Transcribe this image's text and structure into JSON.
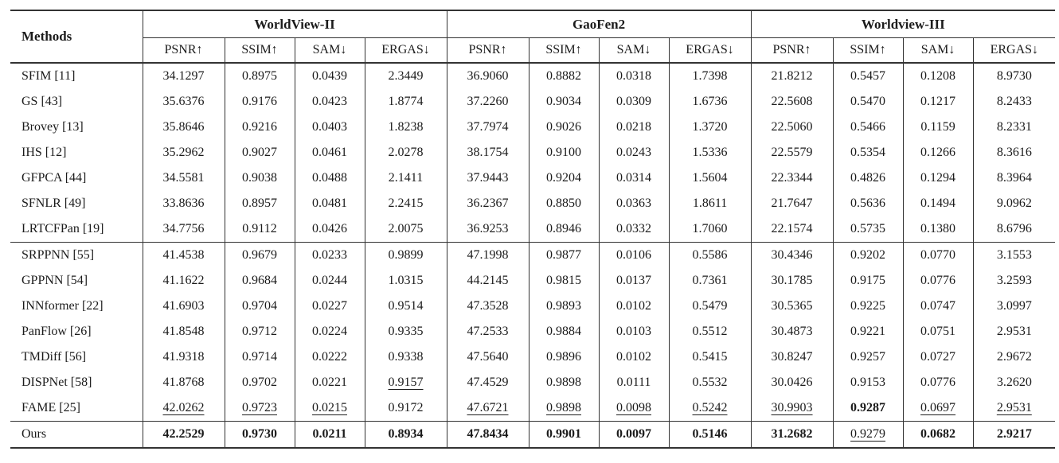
{
  "colors": {
    "text": "#1b1b1b",
    "rule": "#333333"
  },
  "table": {
    "methods_header": "Methods",
    "groups": [
      {
        "label": "WorldView-II",
        "metrics": [
          "PSNR↑",
          "SSIM↑",
          "SAM↓",
          "ERGAS↓"
        ]
      },
      {
        "label": "GaoFen2",
        "metrics": [
          "PSNR↑",
          "SSIM↑",
          "SAM↓",
          "ERGAS↓"
        ]
      },
      {
        "label": "Worldview-III",
        "metrics": [
          "PSNR↑",
          "SSIM↑",
          "SAM↓",
          "ERGAS↓"
        ]
      }
    ],
    "rows": [
      {
        "method": "SFIM [11]",
        "group": "classical",
        "values": [
          "34.1297",
          "0.8975",
          "0.0439",
          "2.3449",
          "36.9060",
          "0.8882",
          "0.0318",
          "1.7398",
          "21.8212",
          "0.5457",
          "0.1208",
          "8.9730"
        ]
      },
      {
        "method": "GS [43]",
        "group": "classical",
        "values": [
          "35.6376",
          "0.9176",
          "0.0423",
          "1.8774",
          "37.2260",
          "0.9034",
          "0.0309",
          "1.6736",
          "22.5608",
          "0.5470",
          "0.1217",
          "8.2433"
        ]
      },
      {
        "method": "Brovey [13]",
        "group": "classical",
        "values": [
          "35.8646",
          "0.9216",
          "0.0403",
          "1.8238",
          "37.7974",
          "0.9026",
          "0.0218",
          "1.3720",
          "22.5060",
          "0.5466",
          "0.1159",
          "8.2331"
        ]
      },
      {
        "method": "IHS [12]",
        "group": "classical",
        "values": [
          "35.2962",
          "0.9027",
          "0.0461",
          "2.0278",
          "38.1754",
          "0.9100",
          "0.0243",
          "1.5336",
          "22.5579",
          "0.5354",
          "0.1266",
          "8.3616"
        ]
      },
      {
        "method": "GFPCA [44]",
        "group": "classical",
        "values": [
          "34.5581",
          "0.9038",
          "0.0488",
          "2.1411",
          "37.9443",
          "0.9204",
          "0.0314",
          "1.5604",
          "22.3344",
          "0.4826",
          "0.1294",
          "8.3964"
        ]
      },
      {
        "method": "SFNLR [49]",
        "group": "classical",
        "values": [
          "33.8636",
          "0.8957",
          "0.0481",
          "2.2415",
          "36.2367",
          "0.8850",
          "0.0363",
          "1.8611",
          "21.7647",
          "0.5636",
          "0.1494",
          "9.0962"
        ]
      },
      {
        "method": "LRTCFPan [19]",
        "group": "classical",
        "values": [
          "34.7756",
          "0.9112",
          "0.0426",
          "2.0075",
          "36.9253",
          "0.8946",
          "0.0332",
          "1.7060",
          "22.1574",
          "0.5735",
          "0.1380",
          "8.6796"
        ]
      },
      {
        "method": "SRPPNN [55]",
        "group": "deep",
        "values": [
          "41.4538",
          "0.9679",
          "0.0233",
          "0.9899",
          "47.1998",
          "0.9877",
          "0.0106",
          "0.5586",
          "30.4346",
          "0.9202",
          "0.0770",
          "3.1553"
        ]
      },
      {
        "method": "GPPNN [54]",
        "group": "deep",
        "values": [
          "41.1622",
          "0.9684",
          "0.0244",
          "1.0315",
          "44.2145",
          "0.9815",
          "0.0137",
          "0.7361",
          "30.1785",
          "0.9175",
          "0.0776",
          "3.2593"
        ]
      },
      {
        "method": "INNformer [22]",
        "group": "deep",
        "values": [
          "41.6903",
          "0.9704",
          "0.0227",
          "0.9514",
          "47.3528",
          "0.9893",
          "0.0102",
          "0.5479",
          "30.5365",
          "0.9225",
          "0.0747",
          "3.0997"
        ]
      },
      {
        "method": "PanFlow [26]",
        "group": "deep",
        "values": [
          "41.8548",
          "0.9712",
          "0.0224",
          "0.9335",
          "47.2533",
          "0.9884",
          "0.0103",
          "0.5512",
          "30.4873",
          "0.9221",
          "0.0751",
          "2.9531"
        ]
      },
      {
        "method": "TMDiff [56]",
        "group": "deep",
        "values": [
          "41.9318",
          "0.9714",
          "0.0222",
          "0.9338",
          "47.5640",
          "0.9896",
          "0.0102",
          "0.5415",
          "30.8247",
          "0.9257",
          "0.0727",
          "2.9672"
        ]
      },
      {
        "method": "DISPNet [58]",
        "group": "deep",
        "values": [
          "41.8768",
          "0.9702",
          "0.0221",
          "0.9157",
          "47.4529",
          "0.9898",
          "0.0111",
          "0.5532",
          "30.0426",
          "0.9153",
          "0.0776",
          "3.2620"
        ],
        "styles": {
          "3": "u"
        }
      },
      {
        "method": "FAME [25]",
        "group": "deep",
        "values": [
          "42.0262",
          "0.9723",
          "0.0215",
          "0.9172",
          "47.6721",
          "0.9898",
          "0.0098",
          "0.5242",
          "30.9903",
          "0.9287",
          "0.0697",
          "2.9531"
        ],
        "styles": {
          "0": "u",
          "1": "u",
          "2": "u",
          "4": "u",
          "5": "u",
          "6": "u",
          "7": "u",
          "8": "u",
          "9": "b",
          "10": "u",
          "11": "u"
        }
      },
      {
        "method": "Ours",
        "group": "ours",
        "values": [
          "42.2529",
          "0.9730",
          "0.0211",
          "0.8934",
          "47.8434",
          "0.9901",
          "0.0097",
          "0.5146",
          "31.2682",
          "0.9279",
          "0.0682",
          "2.9217"
        ],
        "styles": {
          "0": "b",
          "1": "b",
          "2": "b",
          "3": "b",
          "4": "b",
          "5": "b",
          "6": "b",
          "7": "b",
          "8": "b",
          "9": "u",
          "10": "b",
          "11": "b"
        }
      }
    ]
  }
}
